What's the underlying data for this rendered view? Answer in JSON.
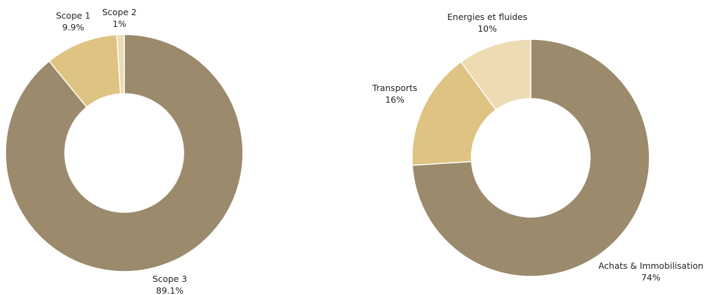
{
  "chart_data": [
    {
      "type": "pie",
      "variant": "donut",
      "slices": [
        {
          "label": "Scope 3",
          "value": 89.1,
          "value_label": "89.1%",
          "color": "#9b8a6b"
        },
        {
          "label": "Scope 1",
          "value": 9.9,
          "value_label": "9.9%",
          "color": "#dfc382"
        },
        {
          "label": "Scope 2",
          "value": 1,
          "value_label": "1%",
          "color": "#ecdbb3"
        }
      ]
    },
    {
      "type": "pie",
      "variant": "donut",
      "slices": [
        {
          "label": "Achats & Immobilisation",
          "value": 74,
          "value_label": "74%",
          "color": "#9b8a6b"
        },
        {
          "label": "Transports",
          "value": 16,
          "value_label": "16%",
          "color": "#dfc382"
        },
        {
          "label": "Energies et fluides",
          "value": 10,
          "value_label": "10%",
          "color": "#ecdbb3"
        }
      ]
    }
  ]
}
